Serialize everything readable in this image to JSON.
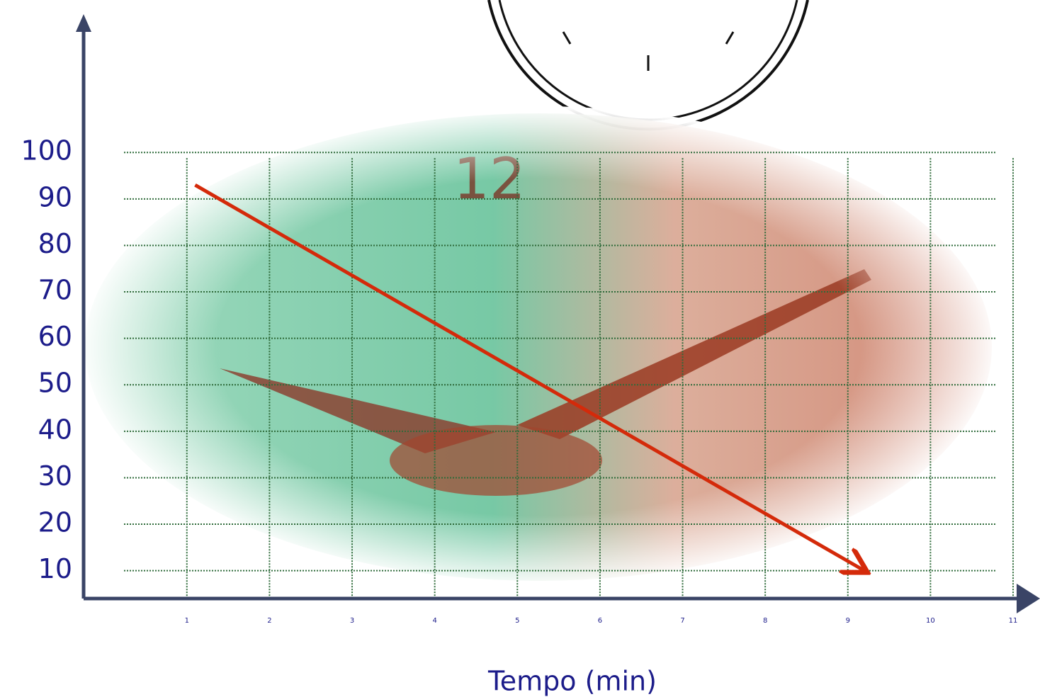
{
  "chart_data": {
    "type": "line",
    "x_label": "Tempo (min)",
    "x": [
      1.1,
      9.2
    ],
    "values": [
      93,
      10
    ],
    "color": "#d42a0a",
    "xlim": [
      -0.25,
      11.3
    ],
    "xticks": [
      1,
      2,
      3,
      4,
      5,
      6,
      7,
      8,
      9,
      10,
      11
    ],
    "ylim": [
      4,
      129
    ],
    "yticks": [
      10,
      20,
      30,
      40,
      50,
      60,
      70,
      80,
      90,
      100
    ],
    "grid": true
  }
}
